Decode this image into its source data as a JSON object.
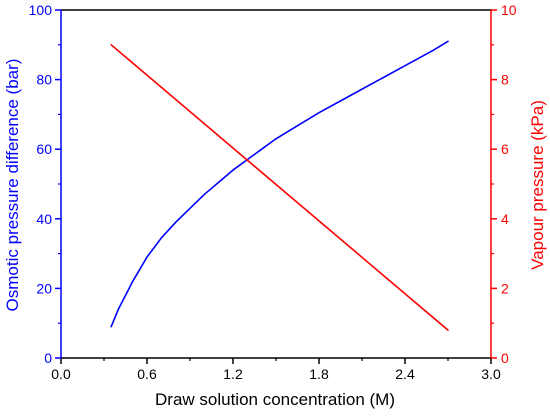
{
  "chart_data": {
    "type": "line",
    "title": "",
    "xlabel": "Draw solution concentration (M)",
    "ylabel_left": "Osmotic pressure difference (bar)",
    "ylabel_right": "Vapour pressure (kPa)",
    "xlim": [
      0.0,
      3.0
    ],
    "ylim_left": [
      0,
      100
    ],
    "ylim_right": [
      0,
      10
    ],
    "x_ticks": [
      "0.0",
      "0.6",
      "1.2",
      "1.8",
      "2.4",
      "3.0"
    ],
    "y_left_ticks": [
      "0",
      "20",
      "40",
      "60",
      "80",
      "100"
    ],
    "y_right_ticks": [
      "0",
      "2",
      "4",
      "6",
      "8",
      "10"
    ],
    "grid": false,
    "colors": {
      "left_axis": "#0000ff",
      "right_axis": "#ff0000",
      "x_axis": "#000000"
    },
    "series": [
      {
        "axis": "left",
        "color": "#0000ff",
        "points": [
          [
            0.35,
            9
          ],
          [
            0.4,
            14
          ],
          [
            0.45,
            18
          ],
          [
            0.5,
            22
          ],
          [
            0.6,
            29
          ],
          [
            0.7,
            34.5
          ],
          [
            0.8,
            39
          ],
          [
            0.9,
            43
          ],
          [
            1.0,
            47
          ],
          [
            1.1,
            50.5
          ],
          [
            1.2,
            54
          ],
          [
            1.3,
            57
          ],
          [
            1.4,
            60
          ],
          [
            1.5,
            63
          ],
          [
            1.6,
            65.5
          ],
          [
            1.8,
            70.5
          ],
          [
            2.0,
            75
          ],
          [
            2.2,
            79.5
          ],
          [
            2.4,
            84
          ],
          [
            2.6,
            88.5
          ],
          [
            2.7,
            91
          ]
        ]
      },
      {
        "axis": "right",
        "color": "#ff0000",
        "points": [
          [
            0.35,
            9.0
          ],
          [
            2.7,
            0.8
          ]
        ]
      }
    ]
  }
}
